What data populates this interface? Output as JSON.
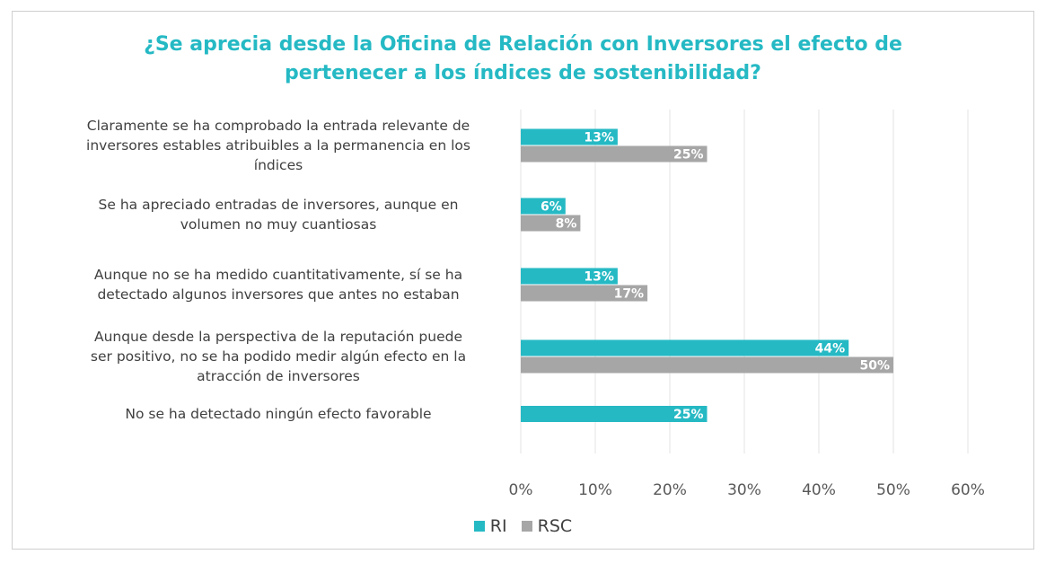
{
  "chart_data": {
    "type": "bar",
    "orientation": "horizontal",
    "title_lines": [
      "¿Se aprecia desde la Oficina de Relación con Inversores el efecto de",
      "pertenecer a los índices de sostenibilidad?"
    ],
    "categories": [
      [
        "Claramente se ha comprobado la entrada relevante de",
        "inversores estables atribuibles a la permanencia en los",
        "índices"
      ],
      [
        "Se ha apreciado entradas de inversores, aunque en",
        "volumen no muy cuantiosas"
      ],
      [
        "Aunque no se ha medido cuantitativamente, sí se ha",
        "detectado algunos inversores que antes no estaban"
      ],
      [
        "Aunque desde la perspectiva de la reputación puede",
        "ser positivo, no se ha podido medir algún efecto en la",
        "atracción de inversores"
      ],
      [
        "No se ha detectado ningún efecto favorable"
      ]
    ],
    "series": [
      {
        "name": "RI",
        "color": "#25b9c4",
        "values": [
          13,
          6,
          13,
          44,
          25
        ],
        "labels": [
          "13%",
          "6%",
          "13%",
          "44%",
          "25%"
        ]
      },
      {
        "name": "RSC",
        "color": "#a6a6a6",
        "values": [
          25,
          8,
          17,
          50,
          null
        ],
        "labels": [
          "25%",
          "8%",
          "17%",
          "50%",
          null
        ]
      }
    ],
    "xlim": [
      0,
      60
    ],
    "xticks": [
      "0%",
      "10%",
      "20%",
      "30%",
      "40%",
      "50%",
      "60%"
    ],
    "grid": true,
    "legend_position": "bottom"
  }
}
